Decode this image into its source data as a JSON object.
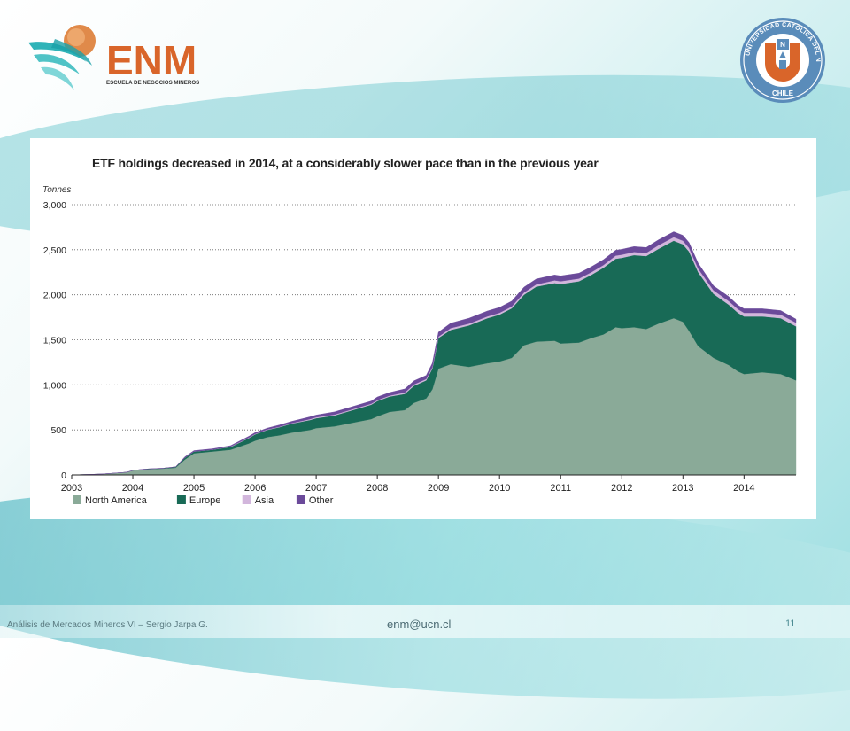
{
  "header": {
    "brand": "ENM",
    "brand_sub": "ESCUELA DE NEGOCIOS MINEROS",
    "ucn_ring_text": "UNIVERSIDAD CATÓLICA DEL NORTE",
    "ucn_country": "CHILE",
    "ucn_letters": "U N",
    "colors": {
      "brand_orange": "#d9652a",
      "ucn_blue": "#4a7fb0",
      "ucn_orange": "#d9652a"
    }
  },
  "footer": {
    "left": "Análisis  de Mercados Mineros VI – Sergio Jarpa G.",
    "mid": "enm@ucn.cl",
    "page": "11"
  },
  "chart_data": {
    "type": "area",
    "title": "ETF holdings decreased in 2014, at a considerably slower pace than in the previous year",
    "ylabel": "Tonnes",
    "xlabel": "",
    "ylim": [
      0,
      3000
    ],
    "yticks": [
      "0",
      "500",
      "1,000",
      "1,500",
      "2,000",
      "2,500",
      "3,000"
    ],
    "ytick_values": [
      0,
      500,
      1000,
      1500,
      2000,
      2500,
      3000
    ],
    "xlim": [
      2003,
      2014.85
    ],
    "xticks": [
      "2003",
      "2004",
      "2005",
      "2006",
      "2007",
      "2008",
      "2009",
      "2010",
      "2011",
      "2012",
      "2013",
      "2014"
    ],
    "grid": "horizontal dotted",
    "legend_position": "bottom-left",
    "stacked": true,
    "x": [
      2003.0,
      2003.5,
      2003.9,
      2004.0,
      2004.2,
      2004.5,
      2004.7,
      2004.85,
      2005.0,
      2005.3,
      2005.6,
      2005.9,
      2006.0,
      2006.2,
      2006.4,
      2006.6,
      2006.9,
      2007.0,
      2007.3,
      2007.6,
      2007.9,
      2008.0,
      2008.2,
      2008.45,
      2008.6,
      2008.8,
      2008.9,
      2009.0,
      2009.2,
      2009.5,
      2009.8,
      2010.0,
      2010.2,
      2010.4,
      2010.6,
      2010.9,
      2011.0,
      2011.3,
      2011.5,
      2011.7,
      2011.9,
      2012.0,
      2012.2,
      2012.4,
      2012.6,
      2012.85,
      2013.0,
      2013.1,
      2013.25,
      2013.5,
      2013.75,
      2013.9,
      2014.0,
      2014.3,
      2014.6,
      2014.85
    ],
    "series": [
      {
        "name": "North America",
        "color": "#8aaa98",
        "values": [
          0,
          10,
          30,
          50,
          60,
          70,
          80,
          170,
          240,
          260,
          280,
          350,
          380,
          420,
          440,
          470,
          500,
          520,
          540,
          580,
          620,
          650,
          700,
          720,
          800,
          850,
          950,
          1180,
          1230,
          1200,
          1240,
          1260,
          1300,
          1440,
          1480,
          1490,
          1460,
          1470,
          1520,
          1560,
          1640,
          1630,
          1640,
          1620,
          1680,
          1740,
          1700,
          1600,
          1430,
          1300,
          1220,
          1150,
          1120,
          1140,
          1120,
          1050
        ]
      },
      {
        "name": "Europe",
        "color": "#186a56",
        "values": [
          0,
          0,
          0,
          0,
          5,
          5,
          10,
          20,
          20,
          20,
          30,
          60,
          70,
          80,
          90,
          100,
          110,
          110,
          120,
          140,
          160,
          170,
          170,
          180,
          190,
          200,
          230,
          340,
          380,
          460,
          500,
          520,
          550,
          560,
          610,
          640,
          660,
          680,
          700,
          740,
          760,
          780,
          800,
          810,
          830,
          860,
          860,
          880,
          820,
          710,
          670,
          650,
          640,
          620,
          620,
          600
        ]
      },
      {
        "name": "Asia",
        "color": "#d2b6dc",
        "values": [
          0,
          0,
          0,
          0,
          0,
          0,
          0,
          0,
          0,
          0,
          5,
          5,
          5,
          5,
          5,
          5,
          10,
          10,
          10,
          10,
          10,
          10,
          10,
          15,
          15,
          15,
          15,
          15,
          20,
          20,
          20,
          20,
          20,
          25,
          25,
          30,
          30,
          30,
          30,
          30,
          35,
          35,
          35,
          35,
          40,
          40,
          40,
          40,
          40,
          40,
          40,
          40,
          40,
          40,
          40,
          40
        ]
      },
      {
        "name": "Other",
        "color": "#6b4a9a",
        "values": [
          0,
          0,
          0,
          0,
          0,
          0,
          0,
          10,
          10,
          10,
          10,
          15,
          15,
          15,
          20,
          20,
          25,
          25,
          30,
          30,
          30,
          35,
          35,
          40,
          40,
          40,
          45,
          50,
          55,
          60,
          60,
          60,
          60,
          60,
          60,
          60,
          60,
          60,
          60,
          60,
          60,
          60,
          60,
          60,
          60,
          60,
          60,
          60,
          60,
          50,
          50,
          45,
          45,
          45,
          45,
          40
        ]
      }
    ]
  }
}
